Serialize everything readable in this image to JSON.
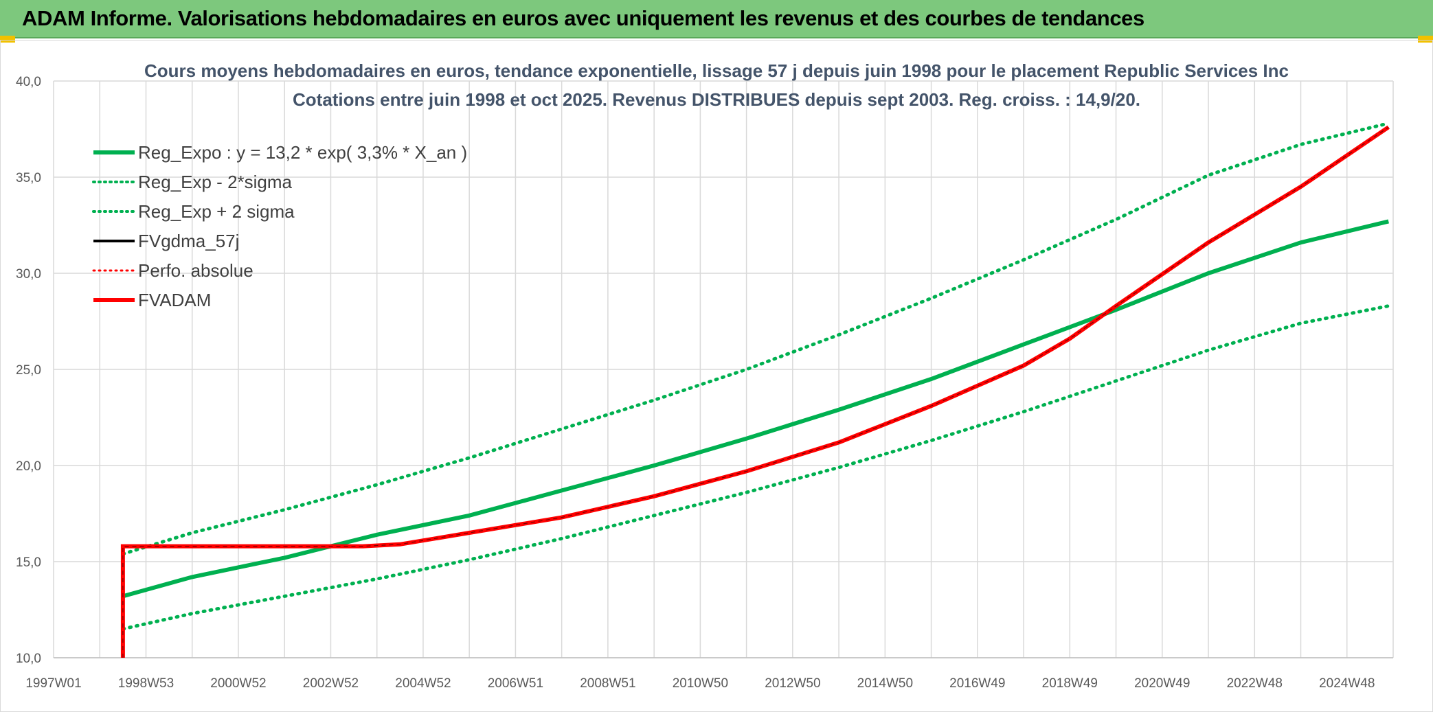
{
  "header": {
    "title": "ADAM Informe. Valorisations hebdomadaires en euros avec uniquement les revenus et des courbes de tendances"
  },
  "colors": {
    "banner": "#7dc87d",
    "green": "#00b050",
    "red": "#ff0000",
    "black": "#000000",
    "grid": "#d9d9d9",
    "title": "#44546a"
  },
  "chart_data": {
    "type": "line",
    "title_line1": "Cours moyens hebdomadaires en euros, tendance exponentielle, lissage 57 j depuis juin 1998 pour le placement Republic Services Inc",
    "title_line2": "Cotations entre juin 1998 et oct 2025. Revenus DISTRIBUES depuis sept 2003. Reg. croiss. : 14,9/20.",
    "ylim": [
      10,
      40
    ],
    "xlim": [
      1997.0,
      2026.0
    ],
    "y_ticks": [
      "10,0",
      "15,0",
      "20,0",
      "25,0",
      "30,0",
      "35,0",
      "40,0"
    ],
    "y_tick_values": [
      10,
      15,
      20,
      25,
      30,
      35,
      40
    ],
    "x_tick_labels": [
      "1997W01",
      "1998W53",
      "2000W52",
      "2002W52",
      "2004W52",
      "2006W51",
      "2008W51",
      "2010W50",
      "2012W50",
      "2014W50",
      "2016W49",
      "2018W49",
      "2020W49",
      "2022W48",
      "2024W48"
    ],
    "x_tick_values": [
      1997.0,
      1999.0,
      2001.0,
      2003.0,
      2005.0,
      2007.0,
      2009.0,
      2011.0,
      2013.0,
      2015.0,
      2017.0,
      2019.0,
      2021.0,
      2023.0,
      2025.0
    ],
    "legend": [
      {
        "label": "Reg_Expo : y = 13,2 * exp( 3,3% *  X_an )",
        "color": "#00b050",
        "style": "solid",
        "width": 6
      },
      {
        "label": "Reg_Exp - 2*sigma",
        "color": "#00b050",
        "style": "dotted",
        "width": 4
      },
      {
        "label": "Reg_Exp + 2 sigma",
        "color": "#00b050",
        "style": "dotted",
        "width": 4
      },
      {
        "label": "FVgdma_57j",
        "color": "#000000",
        "style": "solid",
        "width": 4
      },
      {
        "label": "Perfo. absolue",
        "color": "#ff0000",
        "style": "dotted",
        "width": 3
      },
      {
        "label": "FVADAM",
        "color": "#ff0000",
        "style": "solid",
        "width": 6
      }
    ],
    "series": [
      {
        "name": "Reg_Expo",
        "x": [
          1998.5,
          2000,
          2002,
          2004,
          2006,
          2008,
          2010,
          2012,
          2014,
          2016,
          2018,
          2020,
          2022,
          2024,
          2025.9
        ],
        "values": [
          13.2,
          14.2,
          15.2,
          16.4,
          17.4,
          18.7,
          20.0,
          21.4,
          22.9,
          24.5,
          26.3,
          28.1,
          30.0,
          31.6,
          32.7
        ]
      },
      {
        "name": "Reg_Exp - 2*sigma",
        "x": [
          1998.5,
          2000,
          2002,
          2004,
          2006,
          2008,
          2010,
          2012,
          2014,
          2016,
          2018,
          2020,
          2022,
          2024,
          2025.9
        ],
        "values": [
          11.5,
          12.3,
          13.2,
          14.1,
          15.1,
          16.2,
          17.4,
          18.6,
          19.9,
          21.3,
          22.8,
          24.4,
          26.0,
          27.4,
          28.3
        ]
      },
      {
        "name": "Reg_Exp + 2 sigma",
        "x": [
          1998.5,
          2000,
          2002,
          2004,
          2006,
          2008,
          2010,
          2012,
          2014,
          2016,
          2018,
          2020,
          2022,
          2024,
          2025.9
        ],
        "values": [
          15.4,
          16.5,
          17.7,
          19.0,
          20.4,
          21.9,
          23.4,
          25.0,
          26.8,
          28.7,
          30.7,
          32.8,
          35.1,
          36.7,
          37.8
        ]
      },
      {
        "name": "FVADAM",
        "x": [
          1998.5,
          1998.5,
          2003.7,
          2004.5,
          2006,
          2008,
          2010,
          2012,
          2014,
          2016,
          2018,
          2019,
          2020,
          2022,
          2024,
          2025.9
        ],
        "values": [
          10.0,
          15.8,
          15.8,
          15.9,
          16.5,
          17.3,
          18.4,
          19.7,
          21.2,
          23.1,
          25.2,
          26.6,
          28.3,
          31.6,
          34.5,
          37.6
        ]
      }
    ]
  }
}
